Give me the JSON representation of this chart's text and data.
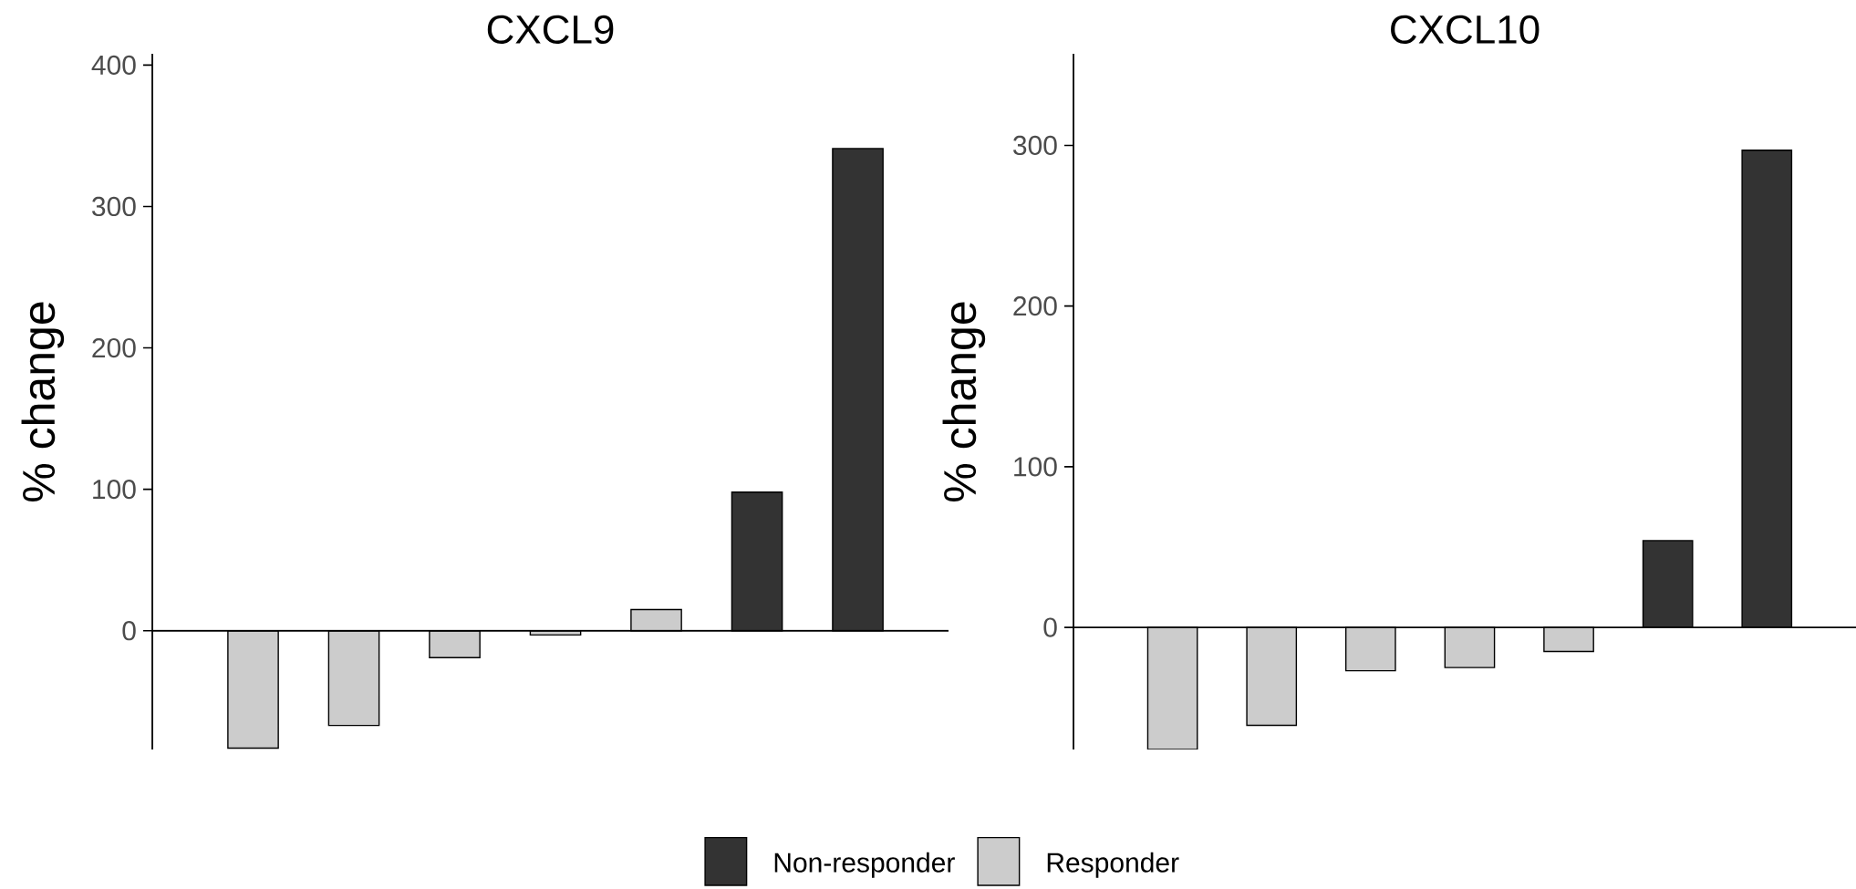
{
  "chart_data": [
    {
      "type": "bar",
      "title": "CXCL9",
      "ylabel": "% change",
      "categories": [
        null,
        null,
        null,
        null,
        null,
        null,
        null
      ],
      "series": [
        {
          "name": "Non-responder",
          "color": "#333333",
          "values": [
            null,
            null,
            null,
            null,
            null,
            98,
            341
          ]
        },
        {
          "name": "Responder",
          "color": "#cccccc",
          "values": [
            -83,
            -67,
            -19,
            -3,
            15,
            null,
            null
          ]
        }
      ],
      "ylim": [
        -84,
        408
      ],
      "yticks": [
        0,
        100,
        200,
        300,
        400
      ],
      "ref_lines": [
        {
          "axis": "y",
          "value": 0
        }
      ],
      "grid": false,
      "legend": "bottom"
    },
    {
      "type": "bar",
      "title": "CXCL10",
      "ylabel": "% change",
      "categories": [
        null,
        null,
        null,
        null,
        null,
        null,
        null
      ],
      "series": [
        {
          "color": "#333333",
          "values": [
            null,
            null,
            null,
            null,
            null,
            54,
            297
          ]
        },
        {
          "color": "#cccccc",
          "values": [
            -76,
            -61,
            -27,
            -25,
            -15,
            null,
            null
          ]
        }
      ],
      "ylim": [
        -76,
        357
      ],
      "yticks": [
        0,
        100,
        200,
        300
      ],
      "ref_lines": [
        {
          "axis": "y",
          "value": 0
        }
      ],
      "grid": false
    }
  ]
}
